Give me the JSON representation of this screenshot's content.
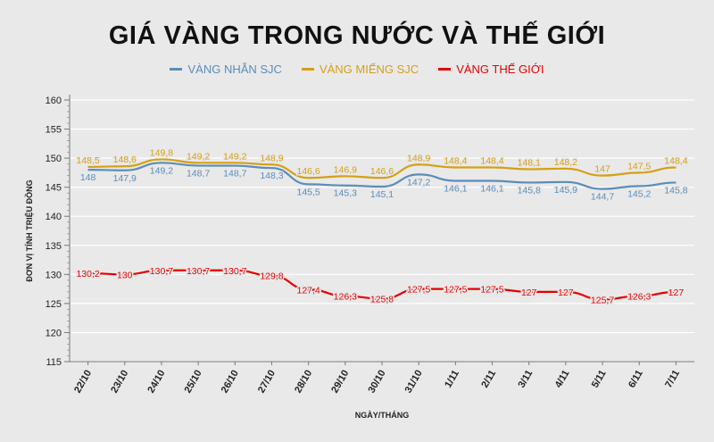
{
  "chart_data": {
    "type": "line",
    "title": "GIÁ VÀNG TRONG NƯỚC VÀ THẾ GIỚI",
    "xlabel": "NGÀY/THÁNG",
    "ylabel": "ĐƠN VỊ TÍNH TRIỆU ĐỒNG",
    "ylim": [
      115,
      160
    ],
    "yticks": [
      "115",
      "120",
      "125",
      "130",
      "135",
      "140",
      "145",
      "150",
      "155",
      "160"
    ],
    "categories": [
      "22/10",
      "23/10",
      "24/10",
      "25/10",
      "26/10",
      "27/10",
      "28/10",
      "29/10",
      "30/10",
      "31/10",
      "1/11",
      "2/11",
      "3/11",
      "4/11",
      "5/11",
      "6/11",
      "7/11"
    ],
    "legend_position": "top-center",
    "grid": true,
    "series": [
      {
        "name": "VÀNG NHẪN SJC",
        "color": "#5b8db8",
        "values": [
          148,
          147.9,
          149.2,
          148.7,
          148.7,
          148.3,
          145.5,
          145.3,
          145.1,
          147.2,
          146.1,
          146.1,
          145.8,
          145.9,
          144.7,
          145.2,
          145.8
        ],
        "labels": [
          "148",
          "147,9",
          "149,2",
          "148,7",
          "148,7",
          "148,3",
          "145,5",
          "145,3",
          "145,1",
          "147,2",
          "146,1",
          "146,1",
          "145,8",
          "145,9",
          "144,7",
          "145,2",
          "145,8"
        ]
      },
      {
        "name": "VÀNG MIẾNG SJC",
        "color": "#d4a017",
        "values": [
          148.5,
          148.6,
          149.8,
          149.2,
          149.2,
          148.9,
          146.6,
          146.9,
          146.6,
          148.9,
          148.4,
          148.4,
          148.1,
          148.2,
          147,
          147.5,
          148.4
        ],
        "labels": [
          "148,5",
          "148,6",
          "149,8",
          "149,2",
          "149,2",
          "148,9",
          "146,6",
          "146,9",
          "146,6",
          "148,9",
          "148,4",
          "148,4",
          "148,1",
          "148,2",
          "147",
          "147,5",
          "148,4"
        ]
      },
      {
        "name": "VÀNG THẾ GIỚI",
        "color": "#e60000",
        "values": [
          130.2,
          130,
          130.7,
          130.7,
          130.7,
          129.8,
          127.4,
          126.3,
          125.8,
          127.5,
          127.5,
          127.5,
          127,
          127,
          125.7,
          126.3,
          127
        ],
        "labels": [
          "130,2",
          "130",
          "130,7",
          "130,7",
          "130,7",
          "129,8",
          "127,4",
          "126,3",
          "125,8",
          "127,5",
          "127,5",
          "127,5",
          "127",
          "127",
          "125,7",
          "126,3",
          "127"
        ]
      }
    ]
  }
}
